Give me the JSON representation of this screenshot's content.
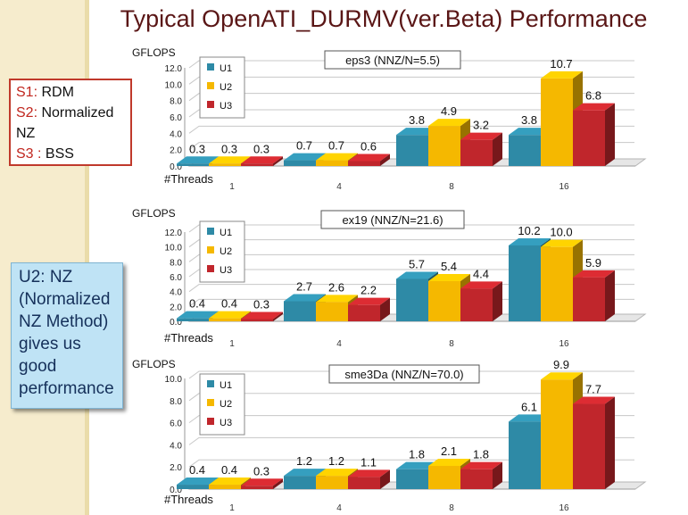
{
  "slide": {
    "title": "Typical OpenATI_DURMV(ver.Beta) Performance",
    "legend_box": [
      {
        "code": "S1:",
        "text": " RDM"
      },
      {
        "code": "S2:",
        "text": " Normalized"
      },
      {
        "code": "",
        "text": "NZ"
      },
      {
        "code": "S3 :",
        "text": " BSS"
      }
    ],
    "note_lines": [
      "U2: NZ",
      "(Normalized",
      "NZ Method)",
      "gives us",
      "good",
      "performance"
    ]
  },
  "colors": {
    "U1": "#2e8aa6",
    "U2": "#f5b800",
    "U3": "#c0262c",
    "box_border": "#c0392b",
    "title": "#5a1616"
  },
  "chart_data": [
    {
      "type": "bar",
      "title": "eps3  (NNZ/N=5.5)",
      "ylabel": "GFLOPS",
      "xlabel": "#Threads",
      "categories": [
        "1",
        "4",
        "8",
        "16"
      ],
      "ylim": [
        0,
        12
      ],
      "yticks": [
        "0.0",
        "2.0",
        "4.0",
        "6.0",
        "8.0",
        "10.0",
        "12.0"
      ],
      "series": [
        {
          "name": "U1",
          "values": [
            0.3,
            0.7,
            3.8,
            3.8
          ]
        },
        {
          "name": "U2",
          "values": [
            0.3,
            0.7,
            4.9,
            10.7
          ]
        },
        {
          "name": "U3",
          "values": [
            0.3,
            0.6,
            3.2,
            6.8
          ]
        }
      ],
      "labels": [
        [
          "0.3",
          "0.7",
          "3.8",
          "3.8"
        ],
        [
          "0.3",
          "0.7",
          "4.9",
          "10.7"
        ],
        [
          "0.3",
          "0.6",
          "3.2",
          "6.8"
        ]
      ],
      "legend": "top-left",
      "grid": true
    },
    {
      "type": "bar",
      "title": "ex19  (NNZ/N=21.6)",
      "ylabel": "GFLOPS",
      "xlabel": "#Threads",
      "categories": [
        "1",
        "4",
        "8",
        "16"
      ],
      "ylim": [
        0,
        12
      ],
      "yticks": [
        "0.0",
        "2.0",
        "4.0",
        "6.0",
        "8.0",
        "10.0",
        "12.0"
      ],
      "series": [
        {
          "name": "U1",
          "values": [
            0.4,
            2.7,
            5.7,
            10.2
          ]
        },
        {
          "name": "U2",
          "values": [
            0.4,
            2.6,
            5.4,
            10.0
          ]
        },
        {
          "name": "U3",
          "values": [
            0.3,
            2.2,
            4.4,
            5.9
          ]
        }
      ],
      "labels": [
        [
          "0.4",
          "2.7",
          "5.7",
          "10.2"
        ],
        [
          "0.4",
          "2.6",
          "5.4",
          "10.0"
        ],
        [
          "0.3",
          "2.2",
          "4.4",
          "5.9"
        ]
      ],
      "legend": "top-left",
      "grid": true
    },
    {
      "type": "bar",
      "title": "sme3Da  (NNZ/N=70.0)",
      "ylabel": "GFLOPS",
      "xlabel": "#Threads",
      "categories": [
        "1",
        "4",
        "8",
        "16"
      ],
      "ylim": [
        0,
        10
      ],
      "yticks": [
        "0.0",
        "2.0",
        "4.0",
        "6.0",
        "8.0",
        "10.0"
      ],
      "series": [
        {
          "name": "U1",
          "values": [
            0.4,
            1.2,
            1.8,
            6.1
          ]
        },
        {
          "name": "U2",
          "values": [
            0.4,
            1.2,
            2.1,
            9.9
          ]
        },
        {
          "name": "U3",
          "values": [
            0.3,
            1.1,
            1.8,
            7.7
          ]
        }
      ],
      "labels": [
        [
          "0.4",
          "1.2",
          "1.8",
          "6.1"
        ],
        [
          "0.4",
          "1.2",
          "2.1",
          "9.9"
        ],
        [
          "0.3",
          "1.1",
          "1.8",
          "7.7"
        ]
      ],
      "legend": "top-left",
      "grid": true
    }
  ]
}
